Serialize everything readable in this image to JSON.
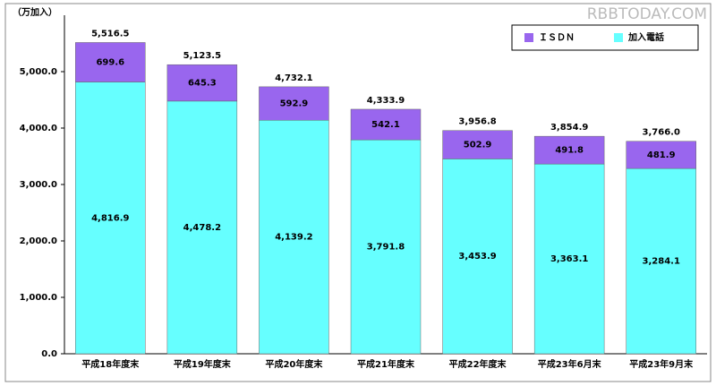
{
  "chart_data": {
    "type": "stacked-bar",
    "y_label": "（万加入）",
    "watermark": "RBBTODAY.COM",
    "categories": [
      "平成18年度末",
      "平成19年度末",
      "平成20年度末",
      "平成21年度末",
      "平成22年度末",
      "平成23年6月末",
      "平成23年9月末"
    ],
    "series": [
      {
        "name": "加入電話",
        "color": "#66ffff",
        "values": [
          4816.9,
          4478.2,
          4139.2,
          3791.8,
          3453.9,
          3363.1,
          3284.1
        ],
        "value_labels": [
          "4,816.9",
          "4,478.2",
          "4,139.2",
          "3,791.8",
          "3,453.9",
          "3,363.1",
          "3,284.1"
        ]
      },
      {
        "name": "ＩＳＤＮ",
        "color": "#9966ee",
        "values": [
          699.6,
          645.3,
          592.9,
          542.1,
          502.9,
          491.8,
          481.9
        ]
      }
    ],
    "totals": [
      5516.5,
      5123.5,
      4732.1,
      4333.9,
      3956.8,
      3854.9,
      3766.0
    ],
    "total_labels": [
      "5,516.5",
      "5,123.5",
      "4,732.1",
      "4,333.9",
      "3,956.8",
      "3,854.9",
      "3,766.0"
    ],
    "ylim": [
      0,
      6000
    ],
    "yticks": [
      {
        "value": 0,
        "label": "0.0"
      },
      {
        "value": 1000,
        "label": "1,000.0"
      },
      {
        "value": 2000,
        "label": "2,000.0"
      },
      {
        "value": 3000,
        "label": "3,000.0"
      },
      {
        "value": 4000,
        "label": "4,000.0"
      },
      {
        "value": 5000,
        "label": "5,000.0"
      }
    ],
    "legend": "top-right"
  }
}
